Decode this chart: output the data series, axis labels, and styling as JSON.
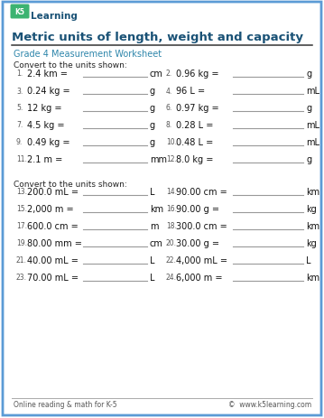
{
  "title": "Metric units of length, weight and capacity",
  "subtitle": "Grade 4 Measurement Worksheet",
  "section1_label": "Convert to the units shown:",
  "section2_label": "Convert to the units shown:",
  "problems_col1": [
    {
      "num": "1.",
      "text": "2.4 km =",
      "unit": "cm"
    },
    {
      "num": "3.",
      "text": "0.24 kg =",
      "unit": "g"
    },
    {
      "num": "5.",
      "text": "12 kg =",
      "unit": "g"
    },
    {
      "num": "7.",
      "text": "4.5 kg =",
      "unit": "g"
    },
    {
      "num": "9.",
      "text": "0.49 kg =",
      "unit": "g"
    },
    {
      "num": "11.",
      "text": "2.1 m =",
      "unit": "mm"
    }
  ],
  "problems_col2": [
    {
      "num": "2.",
      "text": "0.96 kg =",
      "unit": "g"
    },
    {
      "num": "4.",
      "text": "96 L =",
      "unit": "mL"
    },
    {
      "num": "6.",
      "text": "0.97 kg =",
      "unit": "g"
    },
    {
      "num": "8.",
      "text": "0.28 L =",
      "unit": "mL"
    },
    {
      "num": "10.",
      "text": "0.48 L =",
      "unit": "mL"
    },
    {
      "num": "12.",
      "text": "8.0 kg =",
      "unit": "g"
    }
  ],
  "problems2_col1": [
    {
      "num": "13.",
      "text": "200.0 mL =",
      "unit": "L"
    },
    {
      "num": "15.",
      "text": "2,000 m =",
      "unit": "km"
    },
    {
      "num": "17.",
      "text": "600.0 cm =",
      "unit": "m"
    },
    {
      "num": "19.",
      "text": "80.00 mm =",
      "unit": "cm"
    },
    {
      "num": "21.",
      "text": "40.00 mL =",
      "unit": "L"
    },
    {
      "num": "23.",
      "text": "70.00 mL =",
      "unit": "L"
    }
  ],
  "problems2_col2": [
    {
      "num": "14.",
      "text": "90.00 cm =",
      "unit": "km"
    },
    {
      "num": "16.",
      "text": "90.00 g =",
      "unit": "kg"
    },
    {
      "num": "18.",
      "text": "300.0 cm =",
      "unit": "km"
    },
    {
      "num": "20.",
      "text": "30.00 g =",
      "unit": "kg"
    },
    {
      "num": "22.",
      "text": "4,000 mL =",
      "unit": "L"
    },
    {
      "num": "24.",
      "text": "6,000 m =",
      "unit": "km"
    }
  ],
  "footer_left": "Online reading & math for K-5",
  "footer_right": "©  www.k5learning.com",
  "title_color": "#1a5276",
  "subtitle_color": "#2e86ab",
  "border_color": "#5b9bd5",
  "line_color": "#999999",
  "bg_color": "#ffffff",
  "footer_color": "#555555",
  "logo_green": "#3cb371",
  "logo_blue": "#1a5276"
}
